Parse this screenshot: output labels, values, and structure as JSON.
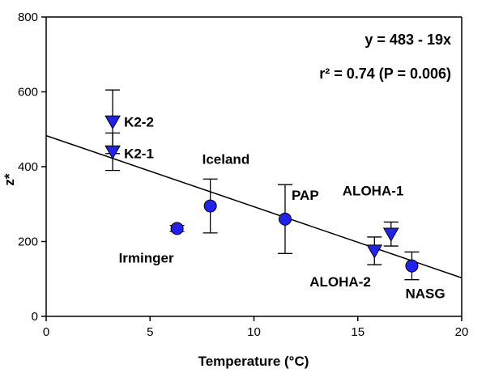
{
  "chart_data": {
    "type": "scatter",
    "xlabel": "Temperature (°C)",
    "ylabel": "z*",
    "xlim": [
      0,
      20
    ],
    "ylim": [
      0,
      800
    ],
    "xticks": [
      0,
      5,
      10,
      15,
      20
    ],
    "yticks": [
      0,
      200,
      400,
      600,
      800
    ],
    "grid": false,
    "marker_color": "#2222ee",
    "regression": {
      "intercept": 483,
      "slope": -19
    },
    "annotations": {
      "equation": "y = 483 - 19x",
      "r2": "r² = 0.74 (P = 0.006)"
    },
    "points": [
      {
        "label": "K2-2",
        "marker": "triangle",
        "x": 3.2,
        "y": 520,
        "err": 85
      },
      {
        "label": "K2-1",
        "marker": "triangle",
        "x": 3.2,
        "y": 440,
        "err": 50
      },
      {
        "label": "Irminger",
        "marker": "circle",
        "x": 6.3,
        "y": 235,
        "err": 8
      },
      {
        "label": "Iceland",
        "marker": "circle",
        "x": 7.9,
        "y": 295,
        "err": 72
      },
      {
        "label": "PAP",
        "marker": "circle",
        "x": 11.5,
        "y": 260,
        "err": 92
      },
      {
        "label": "ALOHA-2",
        "marker": "triangle",
        "x": 15.8,
        "y": 175,
        "err": 37
      },
      {
        "label": "ALOHA-1",
        "marker": "triangle",
        "x": 16.6,
        "y": 220,
        "err": 32
      },
      {
        "label": "NASG",
        "marker": "circle",
        "x": 17.6,
        "y": 135,
        "err": 37
      }
    ]
  }
}
